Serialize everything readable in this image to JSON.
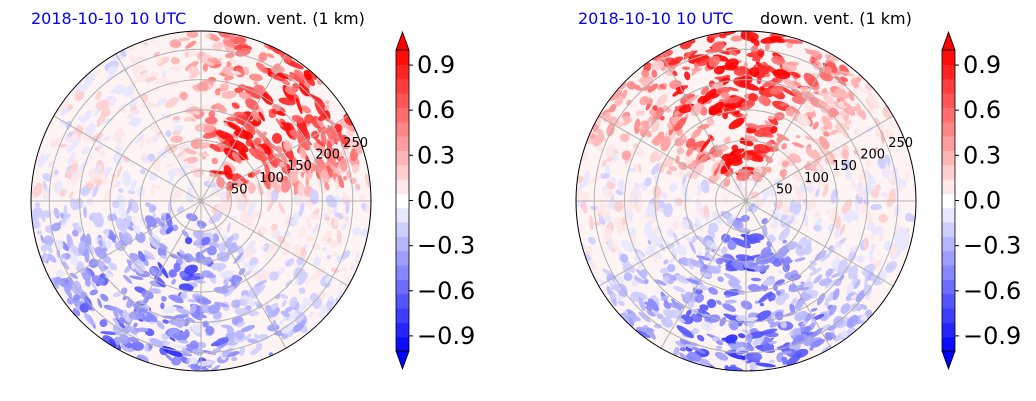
{
  "chart_data": [
    {
      "type": "heatmap",
      "projection": "polar",
      "title_time": "2018-10-10 10 UTC",
      "title_variable": "down. vent. (1 km)",
      "radial_ticks": [
        50,
        100,
        150,
        200,
        250
      ],
      "radial_max": 280,
      "angular_gridlines_deg": [
        0,
        30,
        60,
        90,
        120,
        150,
        180,
        210,
        240,
        270,
        300,
        330
      ],
      "grid": true,
      "colormap": "bwr",
      "value_range": [
        -1.0,
        1.0
      ],
      "colorbar": {
        "ticks": [
          "0.9",
          "0.6",
          "0.3",
          "0.0",
          "−0.3",
          "−0.6",
          "−0.9"
        ],
        "tick_values": [
          0.9,
          0.6,
          0.3,
          0.0,
          -0.3,
          -0.6,
          -0.9
        ],
        "levels": 21,
        "extend": "both"
      },
      "pattern": "positive band in north-east quadrant (about 50-270 km), negative streaks in south-west"
    },
    {
      "type": "heatmap",
      "projection": "polar",
      "title_time": "2018-10-10 10 UTC",
      "title_variable": "down. vent. (1 km)",
      "radial_ticks": [
        50,
        100,
        150,
        200,
        250
      ],
      "radial_max": 280,
      "angular_gridlines_deg": [
        0,
        30,
        60,
        90,
        120,
        150,
        180,
        210,
        240,
        270,
        300,
        330
      ],
      "grid": true,
      "colormap": "bwr",
      "value_range": [
        -1.0,
        1.0
      ],
      "colorbar": {
        "ticks": [
          "0.9",
          "0.6",
          "0.3",
          "0.0",
          "−0.3",
          "−0.6",
          "−0.9"
        ],
        "tick_values": [
          0.9,
          0.6,
          0.3,
          0.0,
          -0.3,
          -0.6,
          -0.9
        ],
        "levels": 21,
        "extend": "both"
      },
      "pattern": "large positive region north-west to north-east, negative streaks in south and south-west"
    }
  ]
}
